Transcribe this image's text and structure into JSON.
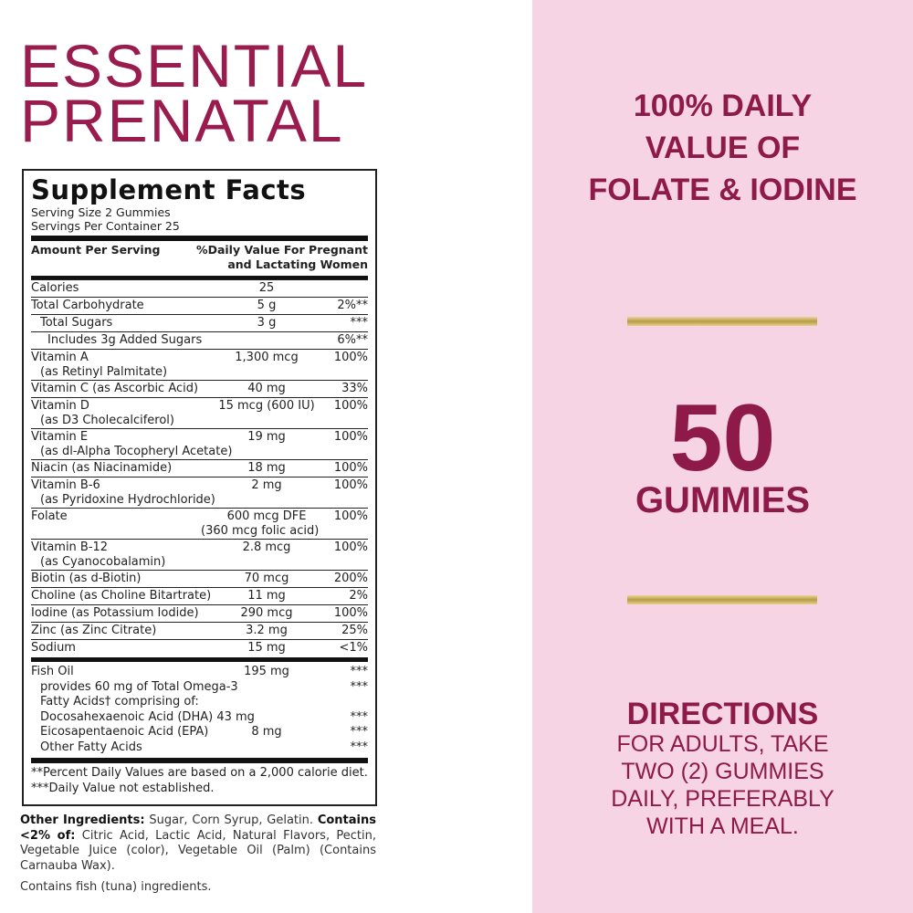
{
  "brand": {
    "line1": "ESSENTIAL",
    "line2": "PRENATAL"
  },
  "facts": {
    "title": "Supplement Facts",
    "serving_size": "Serving Size 2 Gummies",
    "servings_per_container": "Servings Per Container 25",
    "col_amount": "Amount Per Serving",
    "col_dv_1": "%Daily Value For Pregnant",
    "col_dv_2": "and Lactating Women",
    "rows": [
      {
        "name": "Calories",
        "amount": "25",
        "dv": ""
      },
      {
        "name": "Total Carbohydrate",
        "amount": "5 g",
        "dv": "2%**"
      },
      {
        "name": "Total Sugars",
        "amount": "3 g",
        "dv": "***"
      },
      {
        "name": "Includes 3g Added Sugars",
        "amount": "",
        "dv": "6%**"
      },
      {
        "name": "Vitamin A",
        "name2": "(as Retinyl Palmitate)",
        "amount": "1,300 mcg",
        "dv": "100%"
      },
      {
        "name": "Vitamin C (as Ascorbic Acid)",
        "amount": "40 mg",
        "dv": "33%"
      },
      {
        "name": "Vitamin D",
        "name2": "(as D3 Cholecalciferol)",
        "amount": "15 mcg (600 IU)",
        "dv": "100%"
      },
      {
        "name": "Vitamin E",
        "name2": "(as dl-Alpha Tocopheryl Acetate)",
        "amount": "19 mg",
        "dv": "100%"
      },
      {
        "name": "Niacin (as Niacinamide)",
        "amount": "18 mg",
        "dv": "100%"
      },
      {
        "name": "Vitamin B-6",
        "name2": "(as Pyridoxine Hydrochloride)",
        "amount": "2 mg",
        "dv": "100%"
      },
      {
        "name": "Folate",
        "amount": "600 mcg DFE",
        "amount2": "(360 mcg folic acid)",
        "dv": "100%"
      },
      {
        "name": "Vitamin B-12",
        "name2": "(as Cyanocobalamin)",
        "amount": "2.8 mcg",
        "dv": "100%"
      },
      {
        "name": "Biotin (as d-Biotin)",
        "amount": "70 mcg",
        "dv": "200%"
      },
      {
        "name": "Choline (as Choline Bitartrate)",
        "amount": "11 mg",
        "dv": "2%"
      },
      {
        "name": "Iodine (as Potassium Iodide)",
        "amount": "290 mcg",
        "dv": "100%"
      },
      {
        "name": "Zinc (as Zinc Citrate)",
        "amount": "3.2 mg",
        "dv": "25%"
      },
      {
        "name": "Sodium",
        "amount": "15 mg",
        "dv": "<1%"
      }
    ],
    "fish": [
      {
        "name": "Fish Oil",
        "amount": "195 mg",
        "dv": "***"
      },
      {
        "name": "provides 60 mg of Total Omega-3",
        "amount": "",
        "dv": "***"
      },
      {
        "name": "Fatty Acids† comprising of:",
        "amount": "",
        "dv": ""
      },
      {
        "name": "Docosahexaenoic Acid (DHA) 43 mg",
        "amount": "",
        "dv": "***"
      },
      {
        "name": "Eicosapentaenoic Acid (EPA)",
        "amount": "8 mg",
        "dv": "***"
      },
      {
        "name": "Other Fatty Acids",
        "amount": "",
        "dv": "***"
      }
    ],
    "footnote1": "**Percent Daily Values are based on a 2,000 calorie diet.",
    "footnote2": "***Daily Value not established."
  },
  "other": {
    "label": "Other Ingredients:",
    "text": " Sugar, Corn Syrup, Gelatin. ",
    "contains_label": "Contains <2% of:",
    "contains_text": " Citric Acid, Lactic Acid, Natural Flavors, Pectin, Vegetable Juice (color), Vegetable Oil (Palm) (Contains Carnauba Wax).",
    "allergen": "Contains fish (tuna) ingredients."
  },
  "right": {
    "claim": [
      "100% DAILY",
      "VALUE OF",
      "FOLATE & IODINE"
    ],
    "count": "50",
    "count_label": "GUMMIES",
    "directions_title": "DIRECTIONS",
    "directions": [
      "FOR ADULTS, TAKE",
      "TWO (2) GUMMIES",
      "DAILY, PREFERABLY",
      "WITH A MEAL."
    ]
  },
  "colors": {
    "brand": "#9a1c4f",
    "panel": "#f6d4e3",
    "gold": "#b79a45"
  }
}
